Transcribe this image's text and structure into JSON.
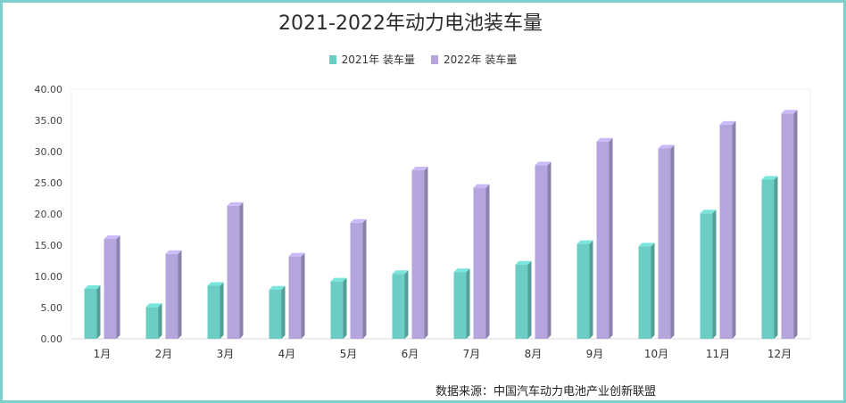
{
  "chart_data": {
    "type": "bar",
    "title": "2021-2022年动力电池装车量",
    "categories": [
      "1月",
      "2月",
      "3月",
      "4月",
      "5月",
      "6月",
      "7月",
      "8月",
      "9月",
      "10月",
      "11月",
      "12月"
    ],
    "series": [
      {
        "name": "2021年 装车量",
        "color": "#6ccdc4",
        "values": [
          8.0,
          5.1,
          8.5,
          7.9,
          9.2,
          10.4,
          10.7,
          11.9,
          15.2,
          14.8,
          20.1,
          25.5
        ]
      },
      {
        "name": "2022年 装车量",
        "color": "#b4a6dd",
        "values": [
          16.0,
          13.6,
          21.3,
          13.2,
          18.6,
          27.0,
          24.2,
          27.8,
          31.6,
          30.5,
          34.3,
          36.1
        ]
      }
    ],
    "yticks": [
      "0.00",
      "5.00",
      "10.00",
      "15.00",
      "20.00",
      "25.00",
      "30.00",
      "35.00",
      "40.00"
    ],
    "ylim": [
      0,
      40
    ],
    "xlabel": "",
    "ylabel": "",
    "grid": false,
    "legend_position": "top"
  },
  "footer": {
    "source": "数据来源：中国汽车动力电池产业创新联盟"
  }
}
